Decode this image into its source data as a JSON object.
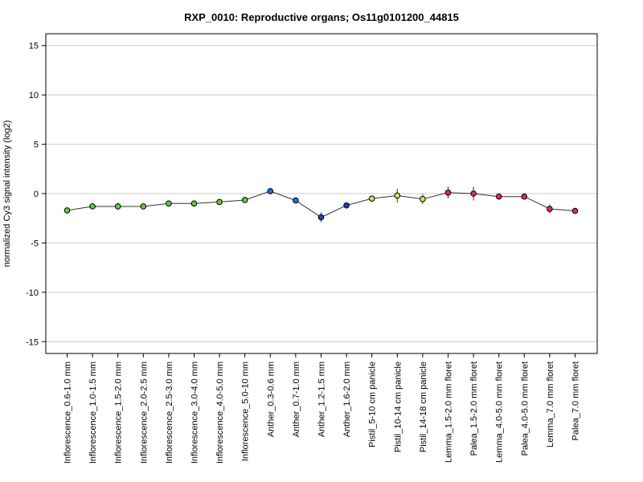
{
  "chart_data": {
    "type": "line",
    "title": "RXP_0010: Reproductive organs; Os11g0101200_44815",
    "xlabel": "",
    "ylabel": "normalized Cy3 signal intensity (log2)",
    "ylim": [
      -16.2,
      16.2
    ],
    "yticks": [
      -15,
      -10,
      -5,
      0,
      5,
      10,
      15
    ],
    "grid": true,
    "categories": [
      "Inflorescence_0.6-1.0 mm",
      "Inflorescence_1.0-1.5 mm",
      "Inflorescence_1.5-2.0 mm",
      "Inflorescence_2.0-2.5 mm",
      "Inflorescence_2.5-3.0 mm",
      "Inflorescence_3.0-4.0 mm",
      "Inflorescence_4.0-5.0 mm",
      "Inflorescence_5.0-10 mm",
      "Anther_0.3-0.6 mm",
      "Anther_0.7-1.0 mm",
      "Anther_1.2-1.5 mm",
      "Anther_1.6-2.0 mm",
      "Pistil_5-10 cm panicle",
      "Pistil_10-14 cm panicle",
      "Pistil_14-18 cm panicle",
      "Lemma_1.5-2.0 mm floret",
      "Palea_1.5-2.0 mm floret",
      "Lemma_4.0-5.0 mm floret",
      "Palea_4.0-5.0 mm floret",
      "Lemma_7.0 mm floret",
      "Palea_7.0 mm floret"
    ],
    "values": [
      -1.7,
      -1.3,
      -1.3,
      -1.3,
      -1.0,
      -1.0,
      -0.85,
      -0.65,
      0.25,
      -0.7,
      -2.4,
      -1.2,
      -0.5,
      -0.2,
      -0.55,
      0.1,
      0.0,
      -0.3,
      -0.3,
      -1.55,
      -1.75
    ],
    "errors": [
      0.15,
      0.2,
      0.35,
      0.15,
      0.25,
      0.15,
      0.15,
      0.15,
      0.2,
      0.15,
      0.5,
      0.3,
      0.2,
      0.7,
      0.5,
      0.6,
      0.7,
      0.15,
      0.15,
      0.45,
      0.25
    ],
    "point_colors": [
      "#66cc33",
      "#66cc33",
      "#66cc33",
      "#66cc33",
      "#66cc33",
      "#66cc33",
      "#66cc33",
      "#66cc33",
      "#1e6fd9",
      "#1e6fd9",
      "#1f3fbf",
      "#1f3fbf",
      "#e8d84a",
      "#e8d84a",
      "#e8d84a",
      "#e0218a",
      "#e0218a",
      "#e0218a",
      "#e0218a",
      "#e0218a",
      "#e0218a"
    ],
    "line_color": "#333333",
    "grid_color": "#cccccc"
  }
}
